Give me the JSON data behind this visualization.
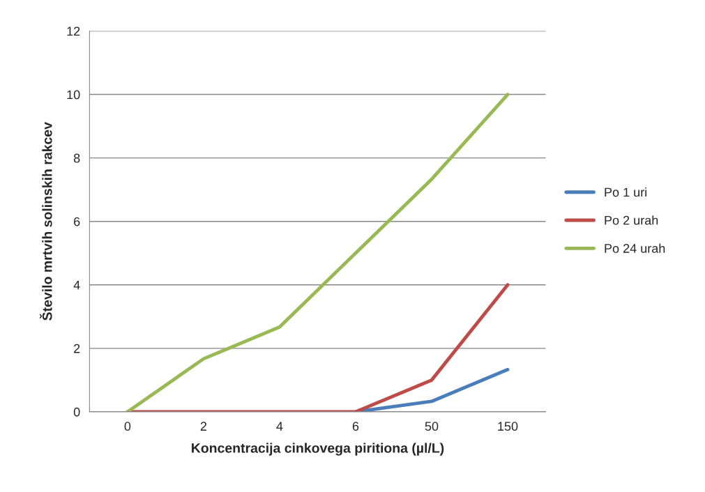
{
  "chart_data": {
    "type": "line",
    "xlabel": "Koncentracija cinkovega piritiona (µl/L)",
    "ylabel": "Število mrtvih solinskih rakcev",
    "categories": [
      "0",
      "2",
      "4",
      "6",
      "50",
      "150"
    ],
    "series": [
      {
        "name": "Po 1 uri",
        "color": "#4a7ebb",
        "values": [
          null,
          null,
          null,
          0,
          0.33,
          1.33
        ]
      },
      {
        "name": "Po 2 urah",
        "color": "#be4b48",
        "values": [
          0,
          0,
          0,
          0,
          1,
          4
        ]
      },
      {
        "name": "Po 24 urah",
        "color": "#98b954",
        "values": [
          0,
          1.67,
          2.67,
          5,
          7.33,
          10
        ]
      }
    ],
    "ylim": [
      0,
      12
    ],
    "yticks": [
      0,
      2,
      4,
      6,
      8,
      10,
      12
    ],
    "grid": "y",
    "legend": "right",
    "marker": "none",
    "line_style": "solid"
  }
}
